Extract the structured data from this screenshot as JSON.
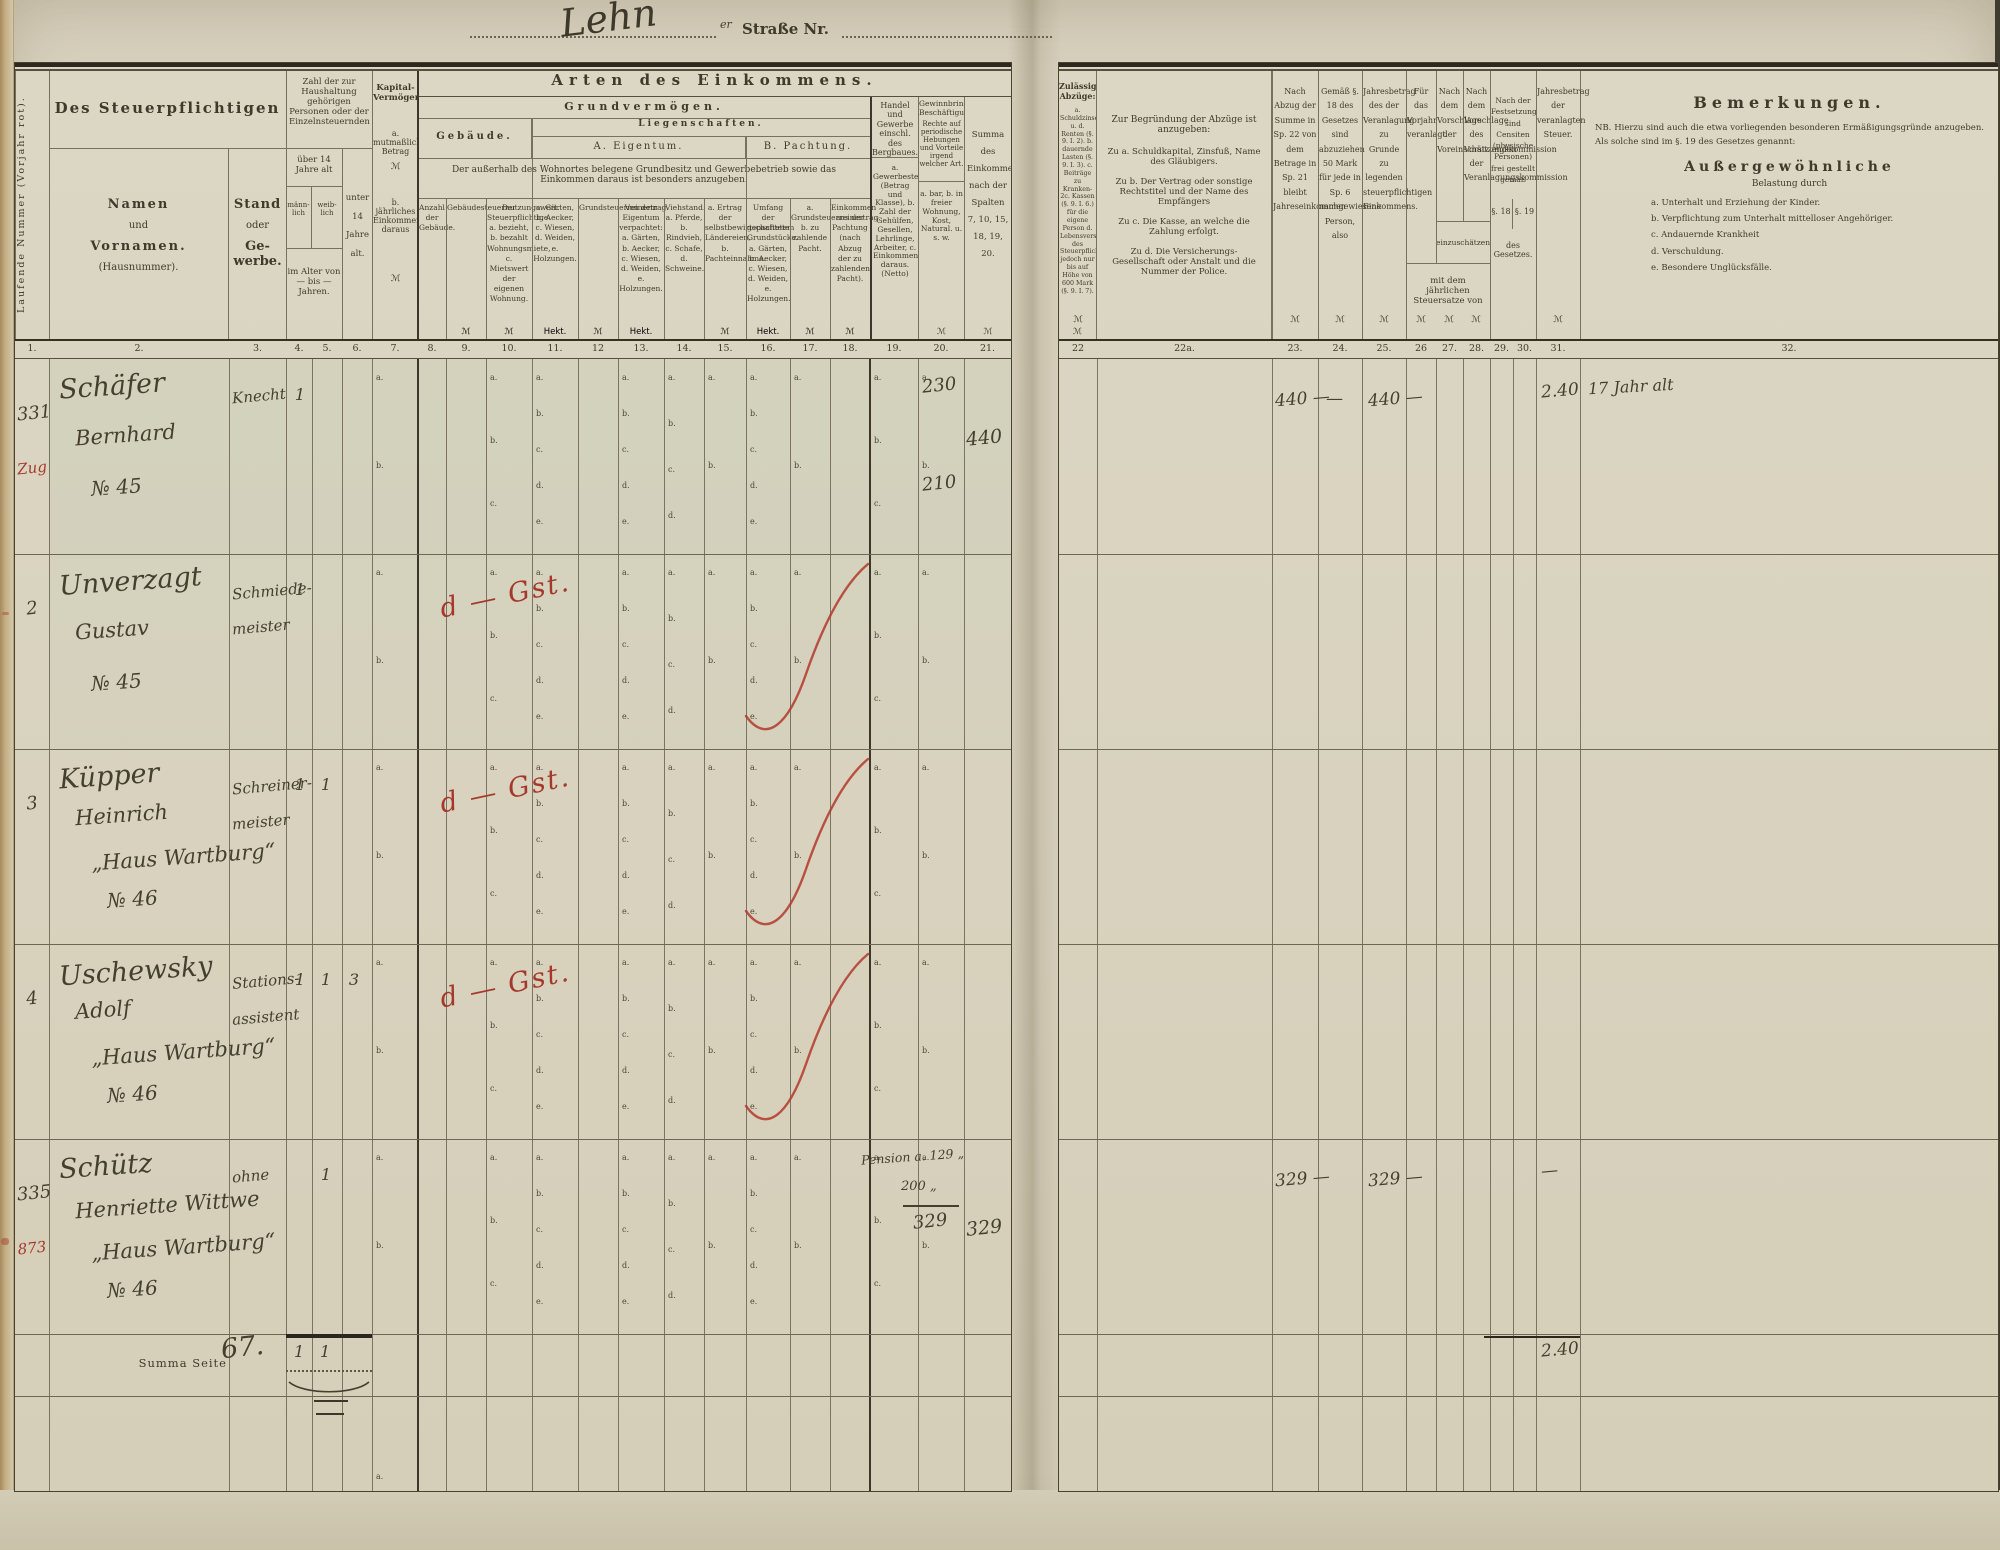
{
  "colors": {
    "accent_red": "#a5382b",
    "ink": "#443f2e",
    "print": "#3f3a2a",
    "paper": "#d7d0bc"
  },
  "street": {
    "name": "Lehn",
    "sup": "er",
    "label": "Straße Nr."
  },
  "left": {
    "col1_rot": "Laufende Nummer (Vorjahr rot).",
    "payer": "Des Steuerpflichtigen",
    "name_lines": [
      "Namen",
      "und",
      "Vornamen.",
      "(Hausnummer)."
    ],
    "stand_lines": [
      "Stand",
      "oder",
      "Ge-",
      "werbe."
    ],
    "household": "Zahl der zur Haushaltung gehörigen Personen oder der Einzelnsteuernden",
    "over14": "über 14 Jahre alt",
    "male": "männ- lich",
    "female": "weib- lich",
    "age_range": "im Alter von — bis — Jahren.",
    "under14": "unter 14 Jahre alt.",
    "capital_title": "Kapital-Vermögen.",
    "capital_a": "a. mutmaßlicher Betrag",
    "capital_b": "b. jährliches Einkommen daraus",
    "m": "ℳ",
    "arten": "Arten des Einkommens.",
    "grund": "Grundvermögen.",
    "liegen": "Liegenschaften.",
    "gebaeude": "Gebäude.",
    "eigentum": "A. Eigentum.",
    "pachtung": "B. Pachtung.",
    "note": "Der außerhalb des Wohnortes belegene Grundbesitz und Gewerbebetrieb sowie das Einkommen daraus ist besonders anzugeben.",
    "cols8_18": [
      {
        "n": "8.",
        "t": "Anzahl der Gebäude.",
        "u": ""
      },
      {
        "n": "9.",
        "t": "Gebäudesteuernutzungswert.",
        "u": "ℳ"
      },
      {
        "n": "10.",
        "t": "Der Steuerpflichtige a. bezieht, b. bezahlt Wohnungsmiete, c. Mietswert der eigenen Wohnung.",
        "u": "ℳ"
      },
      {
        "n": "11.",
        "t": "a. Gärten, b. Aecker, c. Wiesen, d. Weiden, e. Holzungen.",
        "u": "Hekt."
      },
      {
        "n": "12",
        "t": "Grundsteuerreinertrag.",
        "u": "ℳ"
      },
      {
        "n": "13.",
        "t": "Von dem Eigentum verpachtet: a. Gärten, b. Aecker, c. Wiesen, d. Weiden, e. Holzungen.",
        "u": "Hekt."
      },
      {
        "n": "14.",
        "t": "Viehstand. a. Pferde, b. Rindvieh, c. Schafe, d. Schweine.",
        "u": ""
      },
      {
        "n": "15.",
        "t": "a. Ertrag der selbstbewirtschafteten Ländereien, b. Pachteinnahme.",
        "u": "ℳ"
      },
      {
        "n": "16.",
        "t": "Umfang der gepachteten Grundstücke. a. Gärten, b. Aecker, c. Wiesen, d. Weiden, e. Holzungen.",
        "u": "Hekt."
      },
      {
        "n": "17.",
        "t": "a. Grundsteuerreinertrag, b. zu zahlende Pacht.",
        "u": "ℳ"
      },
      {
        "n": "18.",
        "t": "Einkommen aus der Pachtung (nach Abzug der zu zahlenden Pacht).",
        "u": "ℳ"
      }
    ],
    "col19": {
      "title": "Handel und Gewerbe einschl. des Bergbaues.",
      "body": "a. Gewerbesteuer (Betrag und Klasse), b. Zahl der Gehülfen, Gesellen, Lehrlinge, Arbeiter, c. Einkommen daraus. (Netto)"
    },
    "col20": {
      "title": "Gewinnbringende Beschäftigung.",
      "title2": "Rechte auf periodische Hebungen und Vorteile irgend welcher Art.",
      "body": "a. bar, b. in freier Wohnung, Kost, Natural. u. s. w.",
      "u": "ℳ"
    },
    "col21": {
      "t": "Summa des Einkommens nach der Spalten 7, 10, 15, 18, 19, 20.",
      "u": "ℳ"
    },
    "strip": [
      "1.",
      "2.",
      "3.",
      "4.",
      "5.",
      "6.",
      "7.",
      "8.",
      "9.",
      "10.",
      "11.",
      "12",
      "13.",
      "14.",
      "15.",
      "16.",
      "17.",
      "18.",
      "19.",
      "20.",
      "21."
    ]
  },
  "right": {
    "c22_title": "Zulässige Abzüge:",
    "c22_body": "a. Schuldzinsen u. d. Renten (§. 9. I. 2). b. dauernde Lasten (§. 9. I. 3). c. Beiträge zu Kranken- 2c. Kassen (§. 9. I. 6.) für die eigene Person d. Lebensversicherungsprämie des Steuerpflichtigen, jedoch nur bis auf Höhe von 600 Mark (§. 9. I. 7).",
    "c22a_head": "Zur Begründung der Abzüge ist anzugeben:",
    "c22a_p1": "Zu a. Schuldkapital, Zinsfuß, Name des Gläubigers.",
    "c22a_p2": "Zu b. Der Vertrag oder sonstige Rechtstitel und der Name des Empfängers",
    "c22a_p3": "Zu c. Die Kasse, an welche die Zahlung erfolgt.",
    "c22a_p4": "Zu d. Die Versicherungs-Gesellschaft oder Anstalt und die Nummer der Police.",
    "c23": "Nach Abzug der Summe in Sp. 22 von dem Betrage in Sp. 21 bleibt Jahreseinkommen",
    "c24": "Gemäß §. 18 des Gesetzes sind abzuziehen 50 Mark für jede in Sp. 6 nachgewiesene Person, also",
    "c25": "Jahresbetrag des der Veranlagung zu Grunde zu legenden steuerpflichtigen Einkommens.",
    "c26": "Für das Vorjahr veranlagt",
    "c27": "Nach dem Vorschlage der Voreinschätzungskommission",
    "c28": "Nach dem Vorschlage des Vorsitzenden der Veranlagungskommission",
    "einzu": "einzuschätzen",
    "satz": "mit dem jährlichen Steuersatze von",
    "c29_30": "Nach der Festsetzung sind Censiten (physische Personen) frei gestellt gemäß",
    "p18": "§. 18",
    "p19": "§. 19",
    "gesetz": "des Gesetzes.",
    "c31": "Jahresbetrag der veranlagten Steuer.",
    "m": "ℳ",
    "c32_title": "Bemerkungen.",
    "c32_nb": "NB. Hierzu sind auch die etwa vorliegenden besonderen Ermäßigungsgründe anzugeben. Als solche sind im §. 19 des Gesetzes genannt:",
    "c32_sub": "Außergewöhnliche",
    "c32_sub2": "Belastung durch",
    "c32_items": [
      "a. Unterhalt und Erziehung der Kinder.",
      "b. Verpflichtung zum Unterhalt mittelloser Angehöriger.",
      "c. Andauernde Krankheit",
      "d. Verschuldung.",
      "e. Besondere Unglücksfälle."
    ],
    "strip": [
      "22",
      "22a.",
      "23.",
      "24.",
      "25.",
      "26",
      "27.",
      "28.",
      "29.",
      "30.",
      "31.",
      "32."
    ]
  },
  "letters": {
    "7": [
      "a.",
      "b."
    ],
    "10": [
      "a.",
      "b.",
      "c."
    ],
    "11": [
      "a.",
      "b.",
      "c.",
      "d.",
      "e."
    ],
    "13": [
      "a.",
      "b.",
      "c.",
      "d.",
      "e."
    ],
    "14": [
      "a.",
      "b.",
      "c.",
      "d."
    ],
    "15": [
      "a.",
      "b."
    ],
    "16": [
      "a.",
      "b.",
      "c.",
      "d.",
      "e."
    ],
    "17": [
      "a.",
      "b."
    ],
    "19": [
      "a.",
      "b.",
      "c."
    ],
    "20": [
      "a.",
      "b."
    ]
  },
  "rows": [
    {
      "nr": "331",
      "nr_red": "Zug",
      "name": [
        "Schäfer",
        "Bernhard",
        "№ 45"
      ],
      "stand": [
        "Knecht"
      ],
      "c4": "1",
      "c20a": "230",
      "c20b": "210",
      "c21": "440",
      "c23": "440 —",
      "c24": "—",
      "c25": "440 —",
      "c31": "2.40",
      "c32": "17 Jahr alt"
    },
    {
      "nr": "2",
      "name": [
        "Unverzagt",
        "Gustav",
        "№ 45"
      ],
      "stand": [
        "Schmiede-",
        "meister"
      ],
      "c4": "1",
      "red_mark": "d — Gst.",
      "red_curve": true
    },
    {
      "nr": "3",
      "name": [
        "Küpper",
        "Heinrich",
        "„Haus Wartburg“",
        "№ 46"
      ],
      "stand": [
        "Schreiner-",
        "meister"
      ],
      "c4": "1",
      "c5": "1",
      "red_mark": "d — Gst.",
      "red_curve": true
    },
    {
      "nr": "4",
      "name": [
        "Uschewsky",
        "Adolf",
        "„Haus Wartburg“",
        "№ 46"
      ],
      "stand": [
        "Stations-",
        "assistent"
      ],
      "c4": "1",
      "c5": "1",
      "c6": "3",
      "red_mark": "d — Gst.",
      "red_curve": true
    },
    {
      "nr": "335",
      "nr_red": "873",
      "name": [
        "Schütz",
        "Henriette Wittwe",
        "„Haus Wartburg“",
        "№ 46"
      ],
      "stand": [
        "ohne"
      ],
      "c5": "1",
      "c19_note1": "Pension a. 129 „",
      "c19_note2": "200 „",
      "c20sum": "329",
      "c21": "329",
      "c23": "329 —",
      "c25": "329 —",
      "c31": "—"
    }
  ],
  "summa": {
    "label": "Summa Seite",
    "page_total": "67.",
    "c4": "1",
    "c5": "1",
    "right_c31": "2.40"
  },
  "tail_letter": "a."
}
